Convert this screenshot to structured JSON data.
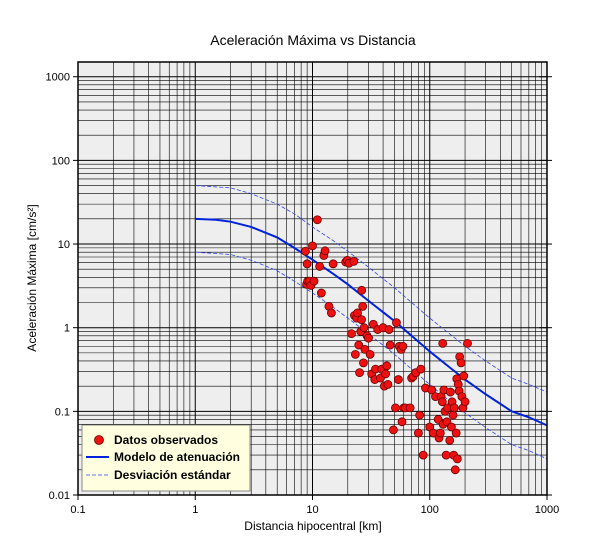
{
  "chart_data": {
    "type": "scatter",
    "title": "Aceleración Máxima vs Distancia",
    "xlabel": "Distancia hipocentral [km]",
    "ylabel": "Aceleración Máxima [cm/s²]",
    "x_scale": "log",
    "y_scale": "log",
    "xlim": [
      0.1,
      1000
    ],
    "ylim": [
      0.01,
      1500
    ],
    "x_ticks": [
      0.1,
      1,
      10,
      100,
      1000
    ],
    "x_tick_labels": [
      "0.1",
      "1",
      "10",
      "100",
      "1000"
    ],
    "y_ticks": [
      0.01,
      0.1,
      1,
      10,
      100,
      1000
    ],
    "y_tick_labels": [
      "0.01",
      "0.1",
      "1",
      "10",
      "100",
      "1000"
    ],
    "grid": true,
    "legend_position": "bottom-left",
    "colors": {
      "observed_fill": "#ee1111",
      "observed_edge": "#6a0000",
      "model": "#0022dd",
      "std": "#3344ee",
      "plot_bg": "#eeeeee",
      "legend_bg": "#ffffe0"
    },
    "series": [
      {
        "name": "Datos observados",
        "kind": "scatter",
        "points": [
          [
            8.7,
            8.2
          ],
          [
            8.9,
            3.3
          ],
          [
            9.0,
            5.8
          ],
          [
            9.1,
            3.6
          ],
          [
            9.4,
            3.6
          ],
          [
            9.7,
            3.2
          ],
          [
            10.0,
            9.5
          ],
          [
            10.3,
            3.6
          ],
          [
            11.0,
            19.5
          ],
          [
            11.5,
            5.4
          ],
          [
            11.9,
            2.6
          ],
          [
            12.5,
            7.3
          ],
          [
            12.8,
            8.3
          ],
          [
            13.8,
            1.8
          ],
          [
            14.5,
            1.5
          ],
          [
            15.0,
            5.8
          ],
          [
            19.2,
            6.1
          ],
          [
            19.8,
            6.4
          ],
          [
            20.5,
            5.9
          ],
          [
            21.5,
            0.85
          ],
          [
            22.5,
            6.2
          ],
          [
            22.8,
            1.4
          ],
          [
            23.2,
            0.48
          ],
          [
            23.8,
            1.3
          ],
          [
            24.2,
            1.5
          ],
          [
            24.8,
            0.62
          ],
          [
            25.2,
            0.29
          ],
          [
            25.8,
            0.9
          ],
          [
            26.2,
            1.25
          ],
          [
            26.3,
            2.8
          ],
          [
            26.8,
            1.8
          ],
          [
            27.2,
            0.38
          ],
          [
            27.5,
            1.0
          ],
          [
            28.0,
            0.55
          ],
          [
            29.2,
            0.8
          ],
          [
            30.0,
            0.75
          ],
          [
            31.0,
            0.48
          ],
          [
            32.0,
            0.28
          ],
          [
            33.0,
            1.1
          ],
          [
            34.0,
            0.24
          ],
          [
            34.5,
            0.32
          ],
          [
            36.0,
            0.95
          ],
          [
            38.0,
            0.25
          ],
          [
            39.0,
            0.32
          ],
          [
            40.0,
            1.0
          ],
          [
            41.0,
            0.2
          ],
          [
            42.0,
            0.28
          ],
          [
            43.0,
            0.35
          ],
          [
            44.0,
            0.21
          ],
          [
            45.0,
            0.95
          ],
          [
            46.0,
            0.62
          ],
          [
            49.0,
            0.06
          ],
          [
            51.0,
            0.11
          ],
          [
            52.0,
            1.15
          ],
          [
            54.0,
            0.24
          ],
          [
            55.0,
            0.6
          ],
          [
            57.0,
            0.55
          ],
          [
            58.0,
            0.075
          ],
          [
            59.0,
            0.6
          ],
          [
            60.0,
            0.11
          ],
          [
            62.0,
            0.11
          ],
          [
            68.0,
            0.11
          ],
          [
            70.0,
            0.25
          ],
          [
            72.0,
            0.26
          ],
          [
            76.0,
            0.29
          ],
          [
            80.0,
            0.055
          ],
          [
            82.0,
            0.09
          ],
          [
            84.0,
            0.32
          ],
          [
            88.0,
            0.03
          ],
          [
            92.0,
            0.19
          ],
          [
            100.0,
            0.065
          ],
          [
            104.0,
            0.18
          ],
          [
            107.0,
            0.055
          ],
          [
            112.0,
            0.15
          ],
          [
            118.0,
            0.08
          ],
          [
            120.0,
            0.048
          ],
          [
            123.0,
            0.055
          ],
          [
            125.0,
            0.15
          ],
          [
            128.0,
            0.13
          ],
          [
            129.0,
            0.65
          ],
          [
            130.0,
            0.07
          ],
          [
            132.0,
            0.18
          ],
          [
            135.0,
            0.1
          ],
          [
            138.0,
            0.03
          ],
          [
            140.0,
            0.075
          ],
          [
            142.0,
            0.11
          ],
          [
            148.0,
            0.045
          ],
          [
            150.0,
            0.17
          ],
          [
            153.0,
            0.065
          ],
          [
            155.0,
            0.13
          ],
          [
            158.0,
            0.09
          ],
          [
            160.0,
            0.03
          ],
          [
            162.0,
            0.11
          ],
          [
            165.0,
            0.02
          ],
          [
            168.0,
            0.055
          ],
          [
            170.0,
            0.245
          ],
          [
            172.0,
            0.027
          ],
          [
            175.0,
            0.21
          ],
          [
            178.0,
            0.175
          ],
          [
            180.0,
            0.45
          ],
          [
            185.0,
            0.38
          ],
          [
            188.0,
            0.15
          ],
          [
            192.0,
            0.11
          ],
          [
            195.0,
            0.265
          ],
          [
            200.0,
            0.13
          ],
          [
            210.0,
            0.65
          ]
        ]
      },
      {
        "name": "Modelo de atenuación",
        "kind": "line",
        "points": [
          [
            1,
            20
          ],
          [
            1.5,
            19.5
          ],
          [
            2,
            18.5
          ],
          [
            3,
            16
          ],
          [
            5,
            12
          ],
          [
            7,
            9
          ],
          [
            10,
            6.5
          ],
          [
            15,
            4.4
          ],
          [
            20,
            3.3
          ],
          [
            30,
            2.1
          ],
          [
            50,
            1.2
          ],
          [
            70,
            0.8
          ],
          [
            100,
            0.52
          ],
          [
            150,
            0.33
          ],
          [
            200,
            0.24
          ],
          [
            300,
            0.16
          ],
          [
            500,
            0.1
          ],
          [
            700,
            0.085
          ],
          [
            1000,
            0.068
          ]
        ]
      },
      {
        "name": "Desviación estándar",
        "kind": "line",
        "style": "dashed",
        "points": [
          [
            1,
            50
          ],
          [
            2,
            47
          ],
          [
            3,
            40
          ],
          [
            5,
            30
          ],
          [
            7,
            23
          ],
          [
            10,
            16
          ],
          [
            15,
            11
          ],
          [
            20,
            8.2
          ],
          [
            30,
            5.3
          ],
          [
            50,
            3.0
          ],
          [
            70,
            2.0
          ],
          [
            100,
            1.3
          ],
          [
            150,
            0.83
          ],
          [
            200,
            0.6
          ],
          [
            300,
            0.4
          ],
          [
            500,
            0.25
          ],
          [
            700,
            0.21
          ],
          [
            1000,
            0.17
          ]
        ]
      },
      {
        "kind": "line",
        "style": "dashed",
        "points": [
          [
            1,
            8
          ],
          [
            2,
            7.5
          ],
          [
            3,
            6.4
          ],
          [
            5,
            4.8
          ],
          [
            7,
            3.6
          ],
          [
            10,
            2.6
          ],
          [
            15,
            1.76
          ],
          [
            20,
            1.3
          ],
          [
            30,
            0.85
          ],
          [
            50,
            0.48
          ],
          [
            70,
            0.32
          ],
          [
            100,
            0.21
          ],
          [
            150,
            0.13
          ],
          [
            200,
            0.096
          ],
          [
            300,
            0.064
          ],
          [
            500,
            0.04
          ],
          [
            700,
            0.034
          ],
          [
            1000,
            0.027
          ]
        ]
      }
    ]
  }
}
